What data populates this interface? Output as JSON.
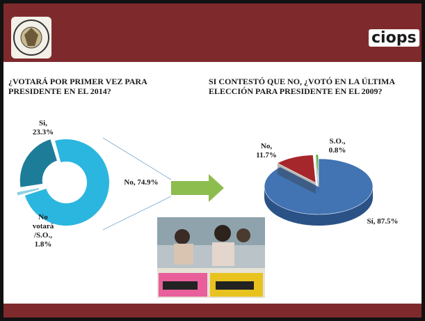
{
  "header": {
    "brand": "ciops"
  },
  "chart_data": [
    {
      "type": "donut",
      "title": "¿VOTARÁ POR PRIMER VEZ PARA PRESIDENTE EN EL 2014?",
      "categories": [
        "No",
        "No votará /S.O.",
        "Si"
      ],
      "values": [
        74.9,
        1.8,
        23.3
      ],
      "value_labels": [
        "No, 74.9%",
        "No votará /S.O., 1.8%",
        "Si, 23.3%"
      ],
      "colors": [
        "#2bb6df",
        "#8fd0e6",
        "#1d7d99"
      ]
    },
    {
      "type": "pie3d",
      "title": "SI CONTESTÓ QUE NO, ¿VOTÓ EN LA ÚLTIMA ELECCIÓN PARA PRESIDENTE EN EL 2009?",
      "categories": [
        "Sí",
        "No",
        "S.O."
      ],
      "values": [
        87.5,
        11.7,
        0.8
      ],
      "value_labels": [
        "Sí, 87.5%",
        "No, 11.7%",
        "S.O., 0.8%"
      ],
      "colors": [
        "#4273b3",
        "#a6272b",
        "#5fb043"
      ]
    }
  ]
}
